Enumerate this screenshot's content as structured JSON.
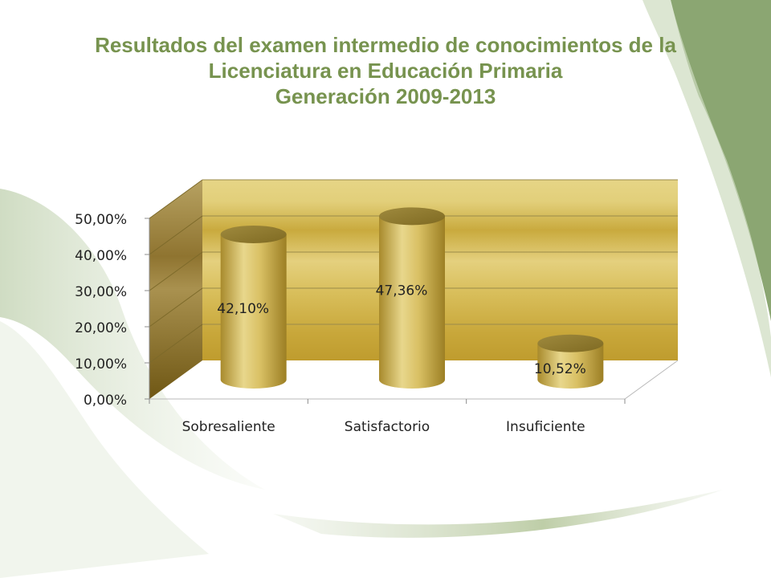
{
  "slide": {
    "title_lines": [
      "Resultados del examen intermedio de conocimientos de la",
      "Licenciatura en Educación Primaria",
      "Generación 2009-2013"
    ]
  },
  "colors": {
    "title": "#77934f",
    "accent_green": "#8ba672",
    "wall_gold": "#c9aa3e",
    "bar_gold": "#d8bf5c"
  },
  "chart_data": {
    "type": "bar",
    "categories": [
      "Sobresaliente",
      "Satisfactorio",
      "Insuficiente"
    ],
    "series": [
      {
        "values": [
          42.1,
          47.36,
          10.52
        ]
      }
    ],
    "data_labels": [
      "42,10%",
      "47,36%",
      "10,52%"
    ],
    "y_ticks": [
      "0,00%",
      "10,00%",
      "20,00%",
      "30,00%",
      "40,00%",
      "50,00%"
    ],
    "ylim": [
      0,
      50
    ],
    "grid": true,
    "legend": "none",
    "title": "",
    "xlabel": "",
    "ylabel": "",
    "style": "3d-cylinder"
  }
}
